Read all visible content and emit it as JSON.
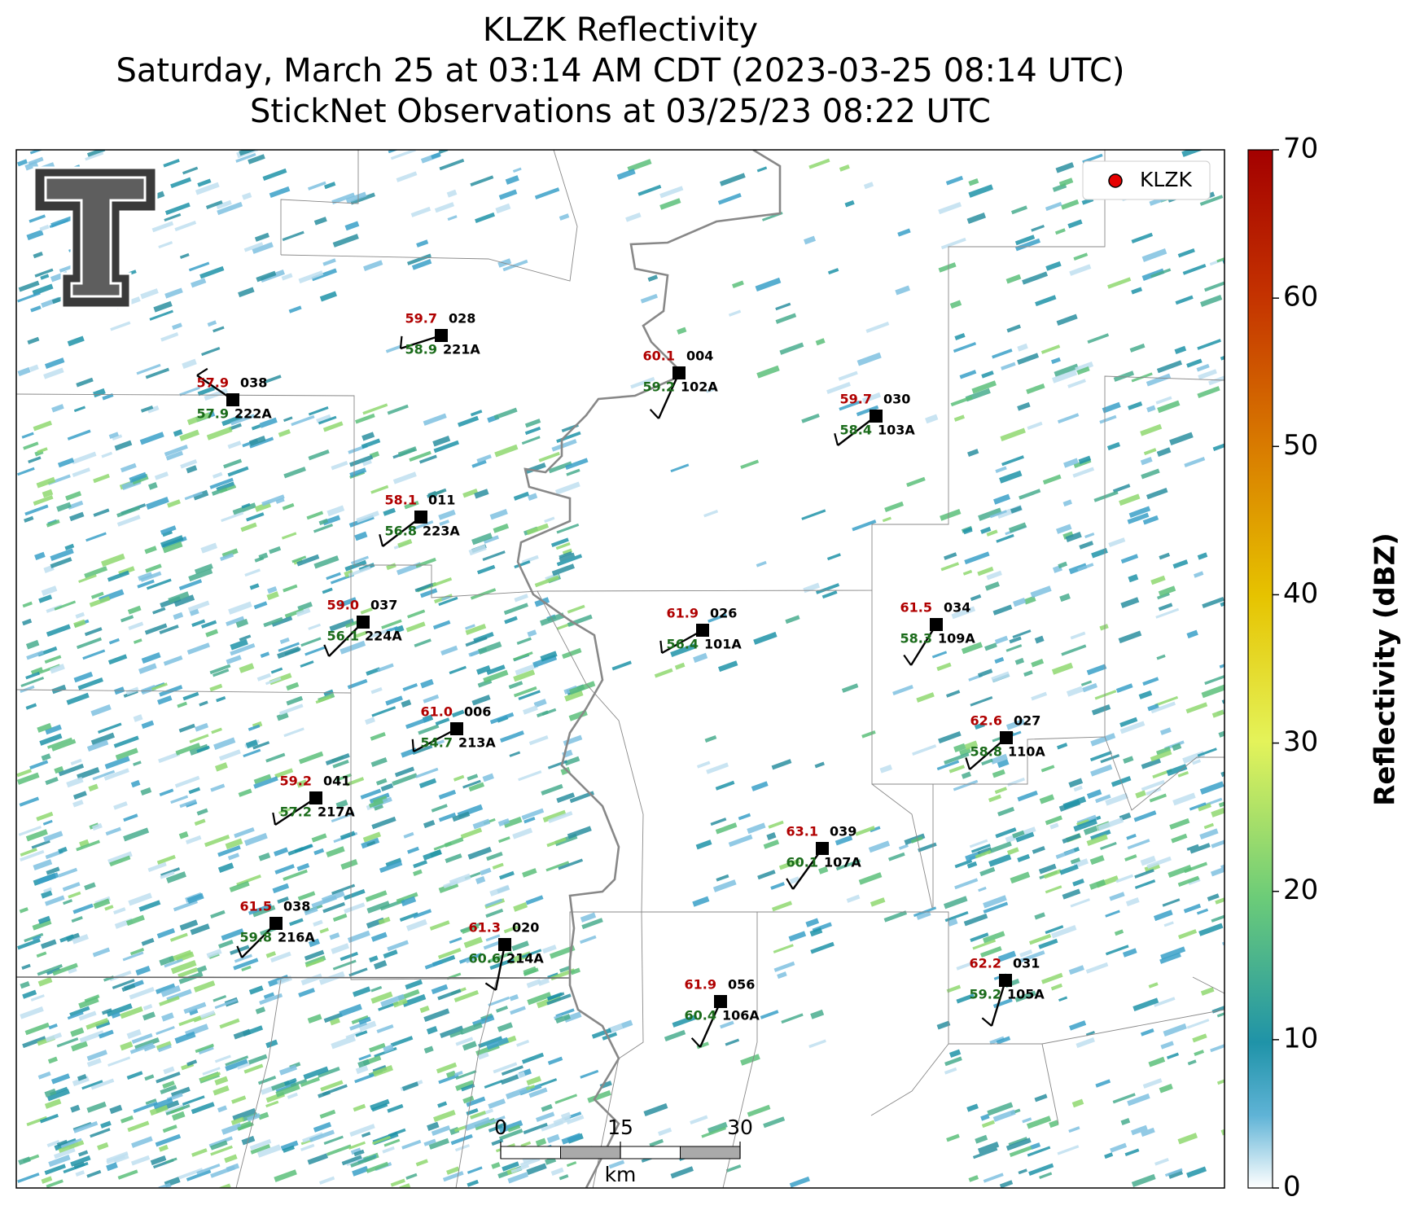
{
  "title": [
    "KLZK Reflectivity",
    "Saturday, March 25 at 03:14 AM CDT (2023-03-25 08:14 UTC)",
    "StickNet Observations at 03/25/23 08:22 UTC"
  ],
  "legend": [
    "KLZK"
  ],
  "stations": [
    {
      "id": "222A",
      "temperature": "57.9",
      "dewpoint": "57.9",
      "code": "038"
    },
    {
      "id": "221A",
      "temperature": "59.7",
      "dewpoint": "58.9",
      "code": "028"
    },
    {
      "id": "102A",
      "temperature": "60.1",
      "dewpoint": "59.2",
      "code": "004"
    },
    {
      "id": "103A",
      "temperature": "59.7",
      "dewpoint": "58.4",
      "code": "030"
    },
    {
      "id": "223A",
      "temperature": "58.1",
      "dewpoint": "56.8",
      "code": "011"
    },
    {
      "id": "224A",
      "temperature": "59.0",
      "dewpoint": "56.1",
      "code": "037"
    },
    {
      "id": "101A",
      "temperature": "61.9",
      "dewpoint": "56.4",
      "code": "026"
    },
    {
      "id": "109A",
      "temperature": "61.5",
      "dewpoint": "58.3",
      "code": "034"
    },
    {
      "id": "213A",
      "temperature": "61.0",
      "dewpoint": "54.7",
      "code": "006"
    },
    {
      "id": "110A",
      "temperature": "62.6",
      "dewpoint": "58.8",
      "code": "027"
    },
    {
      "id": "217A",
      "temperature": "59.2",
      "dewpoint": "57.2",
      "code": "041"
    },
    {
      "id": "107A",
      "temperature": "63.1",
      "dewpoint": "60.1",
      "code": "039"
    },
    {
      "id": "216A",
      "temperature": "61.5",
      "dewpoint": "59.8",
      "code": "038"
    },
    {
      "id": "214A",
      "temperature": "61.3",
      "dewpoint": "60.6",
      "code": "020"
    },
    {
      "id": "106A",
      "temperature": "61.9",
      "dewpoint": "60.4",
      "code": "056"
    },
    {
      "id": "105A",
      "temperature": "62.2",
      "dewpoint": "59.2",
      "code": "031"
    }
  ],
  "colorbar": {
    "label": "Reflectivity (dBZ)",
    "lim": [
      0,
      70
    ],
    "ticks": [
      0,
      10,
      20,
      30,
      40,
      50,
      60,
      70
    ]
  },
  "scale_bar": {
    "ticks": [
      0,
      15,
      30
    ],
    "unit": "km"
  }
}
